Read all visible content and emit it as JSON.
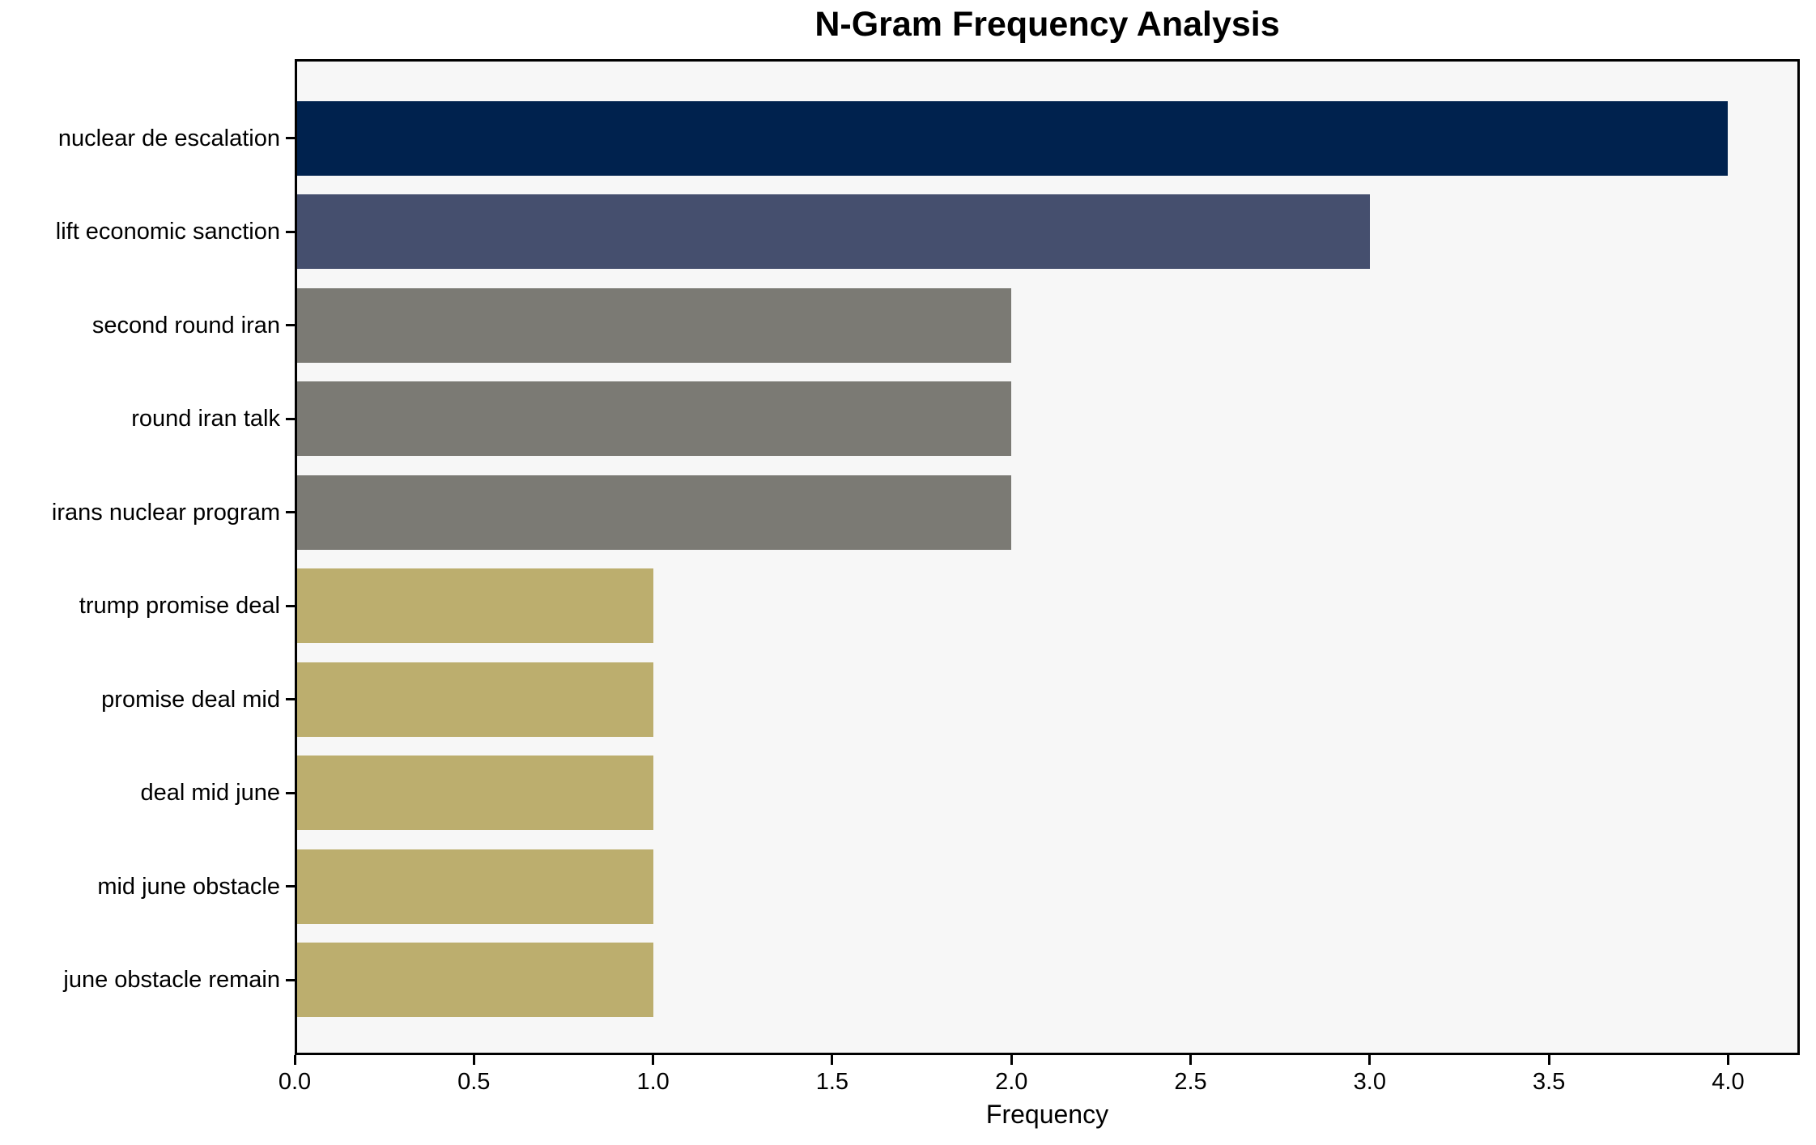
{
  "title": "N-Gram Frequency Analysis",
  "chart_data": {
    "type": "bar",
    "orientation": "horizontal",
    "title": "N-Gram Frequency Analysis",
    "xlabel": "Frequency",
    "ylabel": "",
    "categories": [
      "nuclear de escalation",
      "lift economic sanction",
      "second round iran",
      "round iran talk",
      "irans nuclear program",
      "trump promise deal",
      "promise deal mid",
      "deal mid june",
      "mid june obstacle",
      "june obstacle remain"
    ],
    "values": [
      4,
      3,
      2,
      2,
      2,
      1,
      1,
      1,
      1,
      1
    ],
    "bar_colors": [
      "#00224e",
      "#454f6e",
      "#7b7a74",
      "#7b7a74",
      "#7b7a74",
      "#bcae6e",
      "#bcae6e",
      "#bcae6e",
      "#bcae6e",
      "#bcae6e"
    ],
    "xlim": [
      0,
      4.2
    ],
    "xticks": [
      0.0,
      0.5,
      1.0,
      1.5,
      2.0,
      2.5,
      3.0,
      3.5,
      4.0
    ],
    "xtick_labels": [
      "0.0",
      "0.5",
      "1.0",
      "1.5",
      "2.0",
      "2.5",
      "3.0",
      "3.5",
      "4.0"
    ],
    "grid": false,
    "legend": false,
    "plot_background": "#f7f7f7",
    "figure_background": "#ffffff",
    "frame_color": "#000000"
  }
}
